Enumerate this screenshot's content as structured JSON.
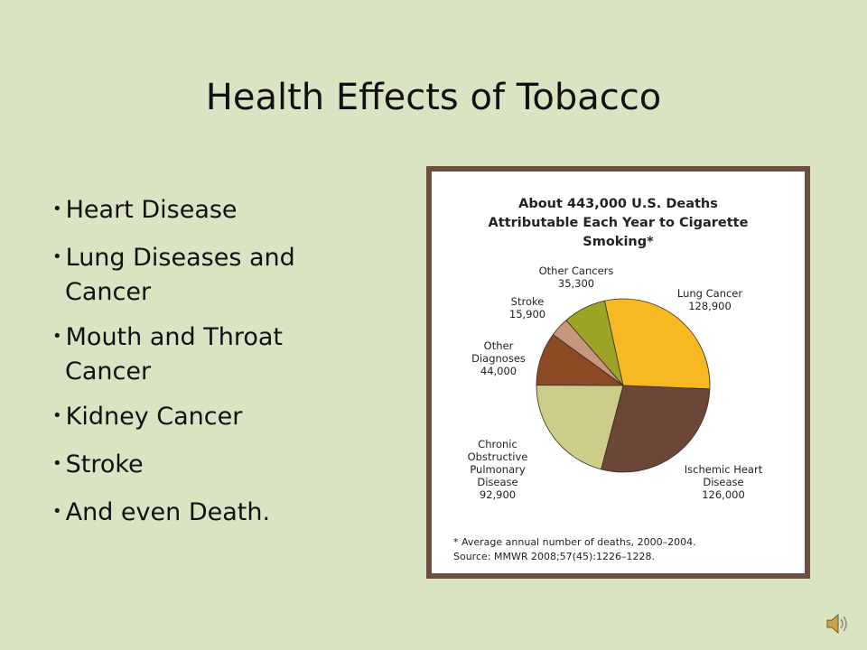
{
  "title": "Health Effects of Tobacco",
  "bullets": [
    "Heart Disease",
    "Lung Diseases and Cancer",
    "Mouth and Throat Cancer",
    "Kidney Cancer",
    "Stroke",
    "And even Death."
  ],
  "chart_data": {
    "type": "pie",
    "title": "About 443,000 U.S. Deaths Attributable Each Year to Cigarette Smoking*",
    "categories": [
      "Lung Cancer",
      "Ischemic Heart Disease",
      "Chronic Obstructive Pulmonary Disease",
      "Other Diagnoses",
      "Stroke",
      "Other Cancers"
    ],
    "values": [
      128900,
      126000,
      92900,
      44000,
      15900,
      35300
    ],
    "value_labels": [
      "128,900",
      "126,000",
      "92,900",
      "44,000",
      "15,900",
      "35,300"
    ],
    "colors": [
      "#f6b922",
      "#6c4738",
      "#cdcd8a",
      "#8c4a24",
      "#c8957d",
      "#9ba424"
    ],
    "footnote": "* Average annual number of deaths, 2000–2004.",
    "source": "Source: MMWR 2008;57(45):1226–1228."
  }
}
